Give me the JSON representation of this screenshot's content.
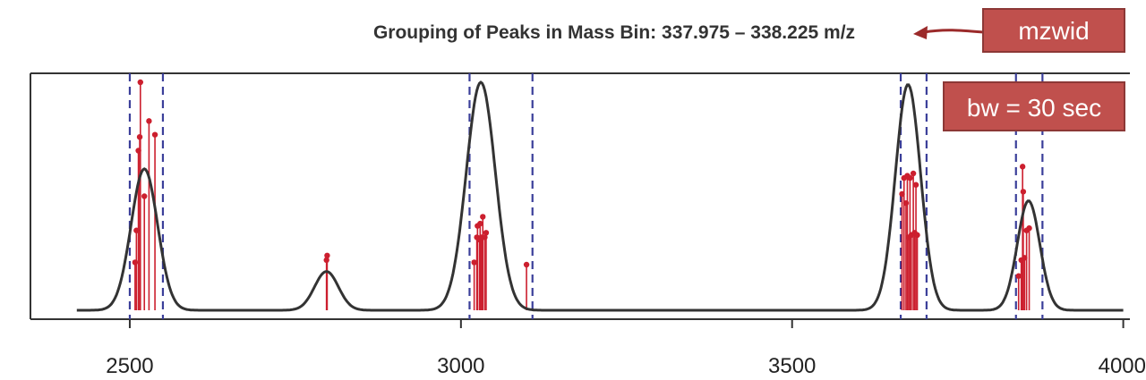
{
  "chart_data": {
    "type": "line",
    "title": "Grouping of Peaks in Mass Bin: 337.975 – 338.225 m/z",
    "xlabel": "",
    "ylabel": "",
    "xlim": [
      2350,
      4010
    ],
    "ylim": [
      0,
      1.0
    ],
    "x_ticks": [
      {
        "value": 2500,
        "label": "2500"
      },
      {
        "value": 3000,
        "label": "3000"
      },
      {
        "value": 3500,
        "label": "3500"
      },
      {
        "value": 4000,
        "label": "4000"
      }
    ],
    "density_peaks": [
      {
        "center": 2522,
        "height": 0.62,
        "sigma": 20
      },
      {
        "center": 2797,
        "height": 0.17,
        "sigma": 18
      },
      {
        "center": 3030,
        "height": 1.0,
        "sigma": 22
      },
      {
        "center": 3675,
        "height": 0.99,
        "sigma": 19
      },
      {
        "center": 3857,
        "height": 0.48,
        "sigma": 17
      }
    ],
    "density_range": [
      2420,
      4000
    ],
    "group_boundaries": [
      [
        2500,
        2550
      ],
      [
        3013,
        3108
      ],
      [
        3664,
        3703
      ],
      [
        3838,
        3878
      ]
    ],
    "peaks": [
      {
        "x": 2508,
        "y": 0.21
      },
      {
        "x": 2510,
        "y": 0.35
      },
      {
        "x": 2513,
        "y": 0.7
      },
      {
        "x": 2515,
        "y": 0.76
      },
      {
        "x": 2516,
        "y": 1.0
      },
      {
        "x": 2522,
        "y": 0.5
      },
      {
        "x": 2529,
        "y": 0.83
      },
      {
        "x": 2538,
        "y": 0.77
      },
      {
        "x": 2797,
        "y": 0.22
      },
      {
        "x": 2798,
        "y": 0.24
      },
      {
        "x": 3020,
        "y": 0.21
      },
      {
        "x": 3024,
        "y": 0.32
      },
      {
        "x": 3025,
        "y": 0.37
      },
      {
        "x": 3028,
        "y": 0.31
      },
      {
        "x": 3029,
        "y": 0.38
      },
      {
        "x": 3031,
        "y": 0.32
      },
      {
        "x": 3033,
        "y": 0.41
      },
      {
        "x": 3036,
        "y": 0.32
      },
      {
        "x": 3038,
        "y": 0.34
      },
      {
        "x": 3099,
        "y": 0.2
      },
      {
        "x": 3666,
        "y": 0.51
      },
      {
        "x": 3669,
        "y": 0.58
      },
      {
        "x": 3672,
        "y": 0.47
      },
      {
        "x": 3674,
        "y": 0.59
      },
      {
        "x": 3676,
        "y": 0.32
      },
      {
        "x": 3678,
        "y": 0.58
      },
      {
        "x": 3680,
        "y": 0.33
      },
      {
        "x": 3683,
        "y": 0.6
      },
      {
        "x": 3685,
        "y": 0.34
      },
      {
        "x": 3687,
        "y": 0.55
      },
      {
        "x": 3689,
        "y": 0.33
      },
      {
        "x": 3842,
        "y": 0.15
      },
      {
        "x": 3846,
        "y": 0.22
      },
      {
        "x": 3848,
        "y": 0.63
      },
      {
        "x": 3849,
        "y": 0.52
      },
      {
        "x": 3851,
        "y": 0.23
      },
      {
        "x": 3854,
        "y": 0.35
      },
      {
        "x": 3858,
        "y": 0.36
      }
    ],
    "grid": false,
    "annotations": [
      {
        "text": "mzwid",
        "points_to": "title"
      },
      {
        "text": "bw = 30 sec",
        "location": "top-right"
      }
    ]
  },
  "colors": {
    "density_line": "#333333",
    "boundary_line": "#3b3f9a",
    "peak_stem": "#cc1f2e",
    "annotation_fill": "#c0504d",
    "annotation_border": "#8c3836",
    "arrow": "#9b2a2a"
  }
}
